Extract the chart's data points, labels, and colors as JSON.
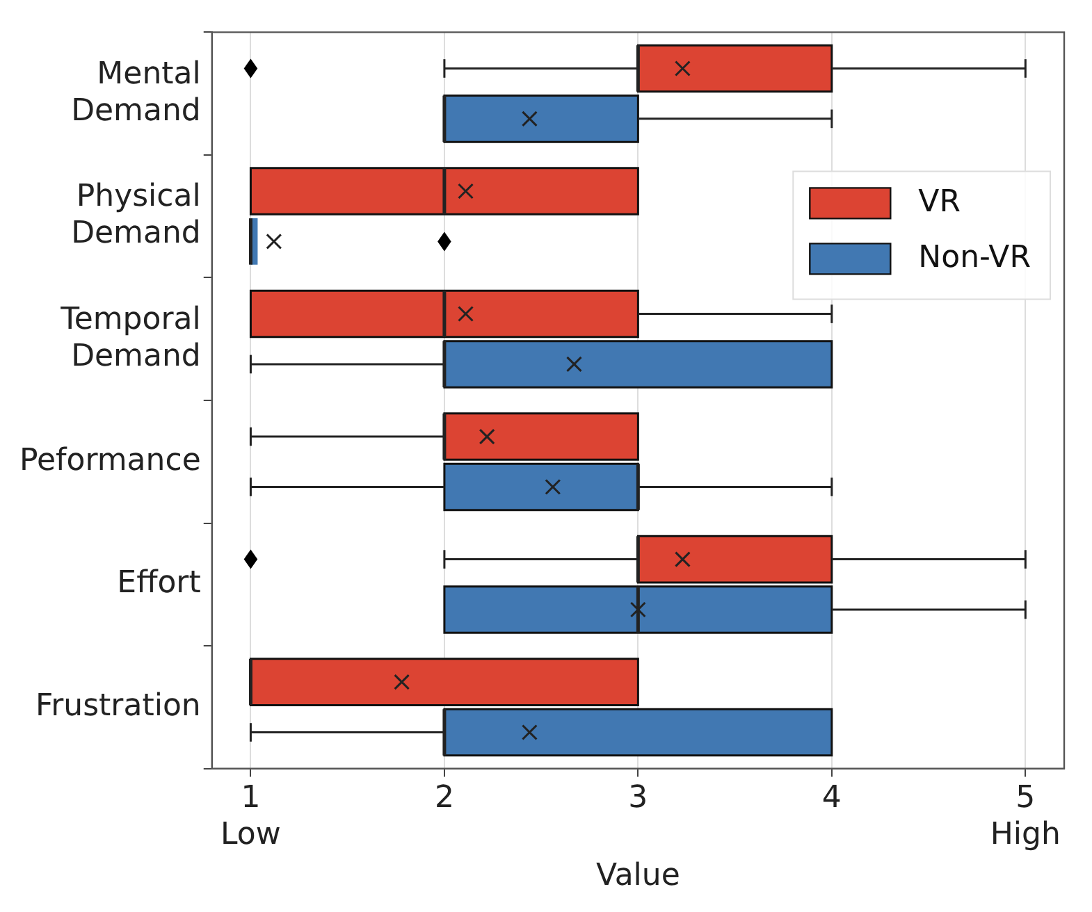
{
  "chart_data": {
    "type": "box",
    "orientation": "horizontal",
    "xlabel": "Value",
    "categories": [
      "Mental Demand",
      "Physical Demand",
      "Temporal Demand",
      "Peformance",
      "Effort",
      "Frustration"
    ],
    "xlim": [
      0.8,
      5.2
    ],
    "xticks": [
      {
        "value": 1,
        "label": "1\nLow"
      },
      2,
      3,
      4,
      {
        "value": 5,
        "label": "5\nHigh"
      }
    ],
    "grid": "x",
    "legend": "top right",
    "series": [
      {
        "name": "VR",
        "color": "#dc4433",
        "boxes": [
          {
            "low": 2,
            "q1": 3,
            "median": 3,
            "q3": 4,
            "high": 5,
            "mean": 3.23,
            "outliers": [
              1
            ]
          },
          {
            "low": 1,
            "q1": 1,
            "median": 2,
            "q3": 3,
            "high": 3,
            "mean": 2.11
          },
          {
            "low": 1,
            "q1": 1,
            "median": 2,
            "q3": 3,
            "high": 4,
            "mean": 2.11
          },
          {
            "low": 1,
            "q1": 2,
            "median": 2,
            "q3": 3,
            "high": 3,
            "mean": 2.22
          },
          {
            "low": 2,
            "q1": 3,
            "median": 3,
            "q3": 4,
            "high": 5,
            "mean": 3.23,
            "outliers": [
              1
            ]
          },
          {
            "low": 1,
            "q1": 1,
            "median": 1,
            "q3": 3,
            "high": 3,
            "mean": 1.78
          }
        ]
      },
      {
        "name": "Non-VR",
        "color": "#4178b2",
        "boxes": [
          {
            "low": 2,
            "q1": 2,
            "median": 2,
            "q3": 3,
            "high": 4,
            "mean": 2.44
          },
          {
            "low": 1,
            "q1": 1,
            "median": 1,
            "q3": 1,
            "high": 1,
            "mean": 1.12,
            "outliers": [
              2
            ]
          },
          {
            "low": 1,
            "q1": 2,
            "median": 2,
            "q3": 4,
            "high": 4,
            "mean": 2.67
          },
          {
            "low": 1,
            "q1": 2,
            "median": 3,
            "q3": 3,
            "high": 4,
            "mean": 2.56
          },
          {
            "low": 2,
            "q1": 2,
            "median": 3,
            "q3": 4,
            "high": 5,
            "mean": 3.0
          },
          {
            "low": 1,
            "q1": 2,
            "median": 2,
            "q3": 4,
            "high": 4,
            "mean": 2.44
          }
        ]
      }
    ]
  }
}
